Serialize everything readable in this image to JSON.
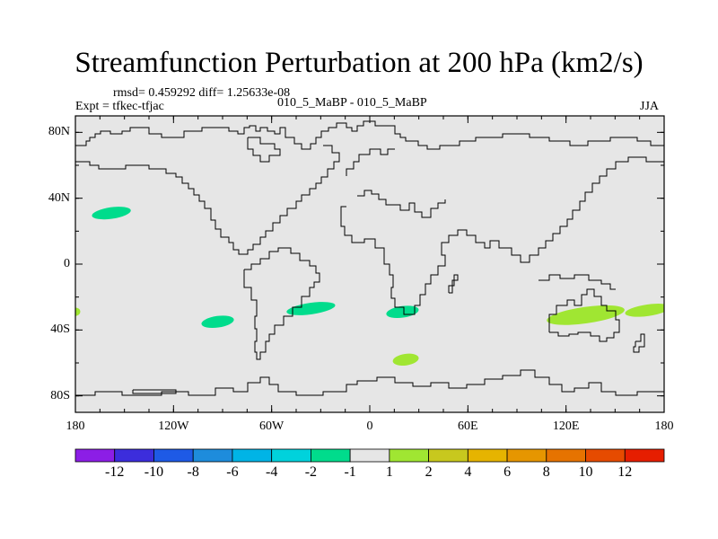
{
  "title": "Streamfunction Perturbation at 200 hPa (km2/s)",
  "stats_line": "rmsd= 0.459292 diff= 1.25633e-08",
  "experiment": "Expt = tfkec-tfjac",
  "case": "010_5_MaBP - 010_5_MaBP",
  "season": "JJA",
  "map": {
    "projection": "cylindrical-equidistant",
    "lon_range": [
      -180,
      180
    ],
    "lat_range": [
      -90,
      90
    ],
    "background_color": "#e6e6e6",
    "coastline_color": "#000000",
    "lat_ticks": [
      "80N",
      "40N",
      "0",
      "40S",
      "80S"
    ],
    "lon_ticks": [
      "180",
      "120W",
      "60W",
      "0",
      "60E",
      "120E",
      "180"
    ]
  },
  "anomalies": [
    {
      "name": "north-pacific-negative",
      "level": "-2..-1",
      "color": "#00dc8c",
      "center": [
        -158,
        31
      ],
      "extent": [
        12,
        3.5
      ]
    },
    {
      "name": "southeast-pacific-negative",
      "level": "-2..-1",
      "color": "#00dc8c",
      "center": [
        -93,
        -35
      ],
      "extent": [
        10,
        3.5
      ]
    },
    {
      "name": "south-atlantic-negative",
      "level": "-2..-1",
      "color": "#00dc8c",
      "center": [
        -36,
        -27
      ],
      "extent": [
        15,
        3.5
      ]
    },
    {
      "name": "south-africa-negative",
      "level": "-2..-1",
      "color": "#00dc8c",
      "center": [
        20,
        -29
      ],
      "extent": [
        10,
        3.5
      ]
    },
    {
      "name": "southern-ocean-positive",
      "level": "1..2",
      "color": "#a0e632",
      "center": [
        22,
        -58
      ],
      "extent": [
        8,
        3.5
      ]
    },
    {
      "name": "australia-positive",
      "level": "1..2",
      "color": "#a0e632",
      "center": [
        132,
        -31
      ],
      "extent": [
        24,
        5
      ]
    },
    {
      "name": "south-pacific-positive",
      "level": "1..2",
      "color": "#a0e632",
      "center": [
        170,
        -28
      ],
      "extent": [
        14,
        3.5
      ]
    },
    {
      "name": "dateline-positive-edge",
      "level": "1..2",
      "color": "#a0e632",
      "center": [
        -180,
        -29
      ],
      "extent": [
        3,
        2.5
      ]
    }
  ],
  "colorbar": {
    "colors": [
      "#8c1ee6",
      "#3c2ddc",
      "#1e5ae6",
      "#1e8cdc",
      "#00b4e6",
      "#00d2dc",
      "#00dc8c",
      "#e6e6e6",
      "#a0e632",
      "#c8c81e",
      "#e6b400",
      "#e69600",
      "#e67300",
      "#e64b00",
      "#e61e00"
    ],
    "labels": [
      "-12",
      "-10",
      "-8",
      "-6",
      "-4",
      "-2",
      "-1",
      "1",
      "2",
      "4",
      "6",
      "8",
      "10",
      "12"
    ]
  }
}
